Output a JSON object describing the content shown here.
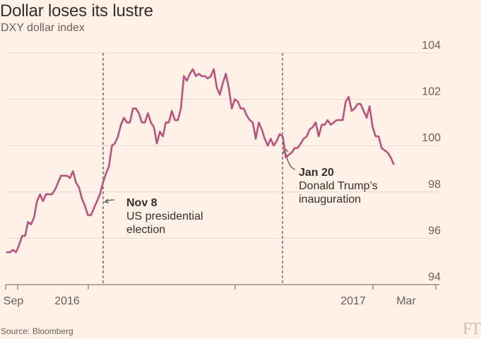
{
  "chart_data": {
    "type": "line",
    "title": "Dollar loses its lustre",
    "subtitle": "DXY dollar index",
    "ylim": [
      94,
      104
    ],
    "yticks": [
      94,
      96,
      98,
      100,
      102,
      104
    ],
    "x_range": [
      0,
      66
    ],
    "xticks": [
      {
        "pos": 0,
        "label": "Sep"
      },
      {
        "pos": 2,
        "label": ""
      },
      {
        "pos": 13,
        "label": "2016"
      },
      {
        "pos": 35,
        "label": ""
      },
      {
        "pos": 57,
        "label": "2017"
      },
      {
        "pos": 66,
        "label": "Mar"
      }
    ],
    "series": [
      {
        "name": "DXY",
        "color": "#b8527e",
        "points": [
          [
            0.0,
            95.4
          ],
          [
            0.5,
            95.4
          ],
          [
            1.0,
            95.5
          ],
          [
            1.5,
            95.4
          ],
          [
            2.0,
            95.7
          ],
          [
            2.5,
            96.1
          ],
          [
            3.0,
            96.1
          ],
          [
            3.5,
            96.7
          ],
          [
            4.0,
            96.6
          ],
          [
            4.5,
            96.9
          ],
          [
            5.0,
            97.6
          ],
          [
            5.5,
            97.9
          ],
          [
            6.0,
            97.6
          ],
          [
            6.5,
            97.9
          ],
          [
            7.0,
            97.9
          ],
          [
            7.5,
            97.9
          ],
          [
            8.0,
            98.1
          ],
          [
            8.5,
            98.4
          ],
          [
            9.0,
            98.7
          ],
          [
            9.5,
            98.7
          ],
          [
            10.0,
            98.7
          ],
          [
            10.5,
            98.6
          ],
          [
            11.0,
            98.9
          ],
          [
            11.5,
            98.4
          ],
          [
            12.0,
            98.2
          ],
          [
            12.5,
            97.7
          ],
          [
            13.0,
            97.4
          ],
          [
            13.5,
            97.0
          ],
          [
            14.0,
            97.0
          ],
          [
            15.0,
            97.6
          ],
          [
            15.5,
            97.9
          ],
          [
            16.0,
            98.4
          ],
          [
            16.5,
            98.8
          ],
          [
            17.0,
            99.1
          ],
          [
            17.5,
            100.0
          ],
          [
            18.0,
            100.1
          ],
          [
            18.5,
            100.4
          ],
          [
            19.0,
            100.9
          ],
          [
            19.5,
            101.2
          ],
          [
            20.0,
            101.0
          ],
          [
            20.5,
            101.0
          ],
          [
            21.0,
            101.6
          ],
          [
            21.5,
            101.6
          ],
          [
            22.0,
            101.4
          ],
          [
            22.5,
            101.0
          ],
          [
            23.0,
            101.0
          ],
          [
            23.5,
            101.4
          ],
          [
            24.0,
            101.0
          ],
          [
            24.5,
            100.8
          ],
          [
            25.0,
            100.1
          ],
          [
            25.5,
            100.6
          ],
          [
            26.0,
            100.4
          ],
          [
            26.5,
            101.0
          ],
          [
            27.0,
            101.0
          ],
          [
            27.5,
            101.5
          ],
          [
            28.0,
            101.1
          ],
          [
            28.5,
            101.1
          ],
          [
            29.0,
            101.6
          ],
          [
            29.5,
            103.0
          ],
          [
            30.0,
            102.8
          ],
          [
            30.5,
            103.1
          ],
          [
            31.0,
            103.3
          ],
          [
            31.5,
            103.0
          ],
          [
            32.0,
            103.1
          ],
          [
            32.5,
            103.0
          ],
          [
            33.0,
            103.0
          ],
          [
            33.5,
            102.9
          ],
          [
            34.0,
            103.0
          ],
          [
            34.5,
            103.3
          ],
          [
            35.0,
            102.5
          ],
          [
            35.5,
            102.2
          ],
          [
            36.0,
            102.7
          ],
          [
            36.5,
            103.1
          ],
          [
            37.0,
            102.5
          ],
          [
            37.5,
            101.6
          ],
          [
            38.0,
            102.0
          ],
          [
            38.5,
            101.9
          ],
          [
            39.0,
            101.6
          ],
          [
            39.5,
            101.6
          ],
          [
            40.0,
            101.3
          ],
          [
            40.5,
            101.1
          ],
          [
            41.0,
            101.0
          ],
          [
            41.5,
            100.3
          ],
          [
            42.0,
            101.0
          ],
          [
            42.5,
            100.7
          ],
          [
            43.0,
            100.3
          ],
          [
            43.5,
            100.0
          ],
          [
            44.0,
            100.3
          ],
          [
            44.5,
            100.0
          ],
          [
            45.0,
            100.2
          ],
          [
            45.5,
            100.5
          ],
          [
            46.0,
            100.4
          ],
          [
            46.5,
            99.5
          ],
          [
            47.0,
            99.6
          ],
          [
            47.5,
            99.7
          ],
          [
            48.0,
            99.9
          ],
          [
            48.5,
            99.9
          ],
          [
            49.0,
            100.1
          ],
          [
            49.5,
            100.3
          ],
          [
            50.0,
            100.4
          ],
          [
            50.5,
            100.7
          ],
          [
            51.0,
            100.8
          ],
          [
            51.5,
            101.0
          ],
          [
            52.0,
            100.4
          ],
          [
            52.5,
            100.9
          ],
          [
            53.0,
            100.9
          ],
          [
            53.5,
            101.1
          ],
          [
            54.0,
            100.9
          ],
          [
            54.5,
            101.0
          ],
          [
            55.0,
            101.1
          ],
          [
            55.5,
            101.1
          ],
          [
            56.0,
            101.1
          ],
          [
            56.5,
            101.9
          ],
          [
            57.0,
            102.1
          ],
          [
            57.5,
            101.5
          ],
          [
            58.0,
            101.6
          ],
          [
            58.5,
            101.8
          ],
          [
            59.0,
            101.8
          ],
          [
            59.5,
            101.5
          ],
          [
            60.0,
            101.2
          ],
          [
            60.5,
            101.7
          ],
          [
            61.0,
            100.8
          ],
          [
            61.5,
            100.4
          ],
          [
            62.0,
            100.4
          ],
          [
            62.5,
            99.9
          ],
          [
            63.0,
            99.8
          ],
          [
            63.5,
            99.7
          ],
          [
            64.0,
            99.5
          ],
          [
            64.5,
            99.2
          ]
        ]
      }
    ],
    "events": [
      {
        "pos": 14.5,
        "value": 97.2,
        "title": "Nov 8",
        "lines": [
          "US presidential",
          "election"
        ]
      },
      {
        "pos": 43.5,
        "value": 99.8,
        "title": "Jan 20",
        "lines": [
          "Donald Trump’s",
          "inauguration"
        ]
      }
    ],
    "grid": true
  },
  "source": "Source: Bloomberg",
  "logo": "FT"
}
